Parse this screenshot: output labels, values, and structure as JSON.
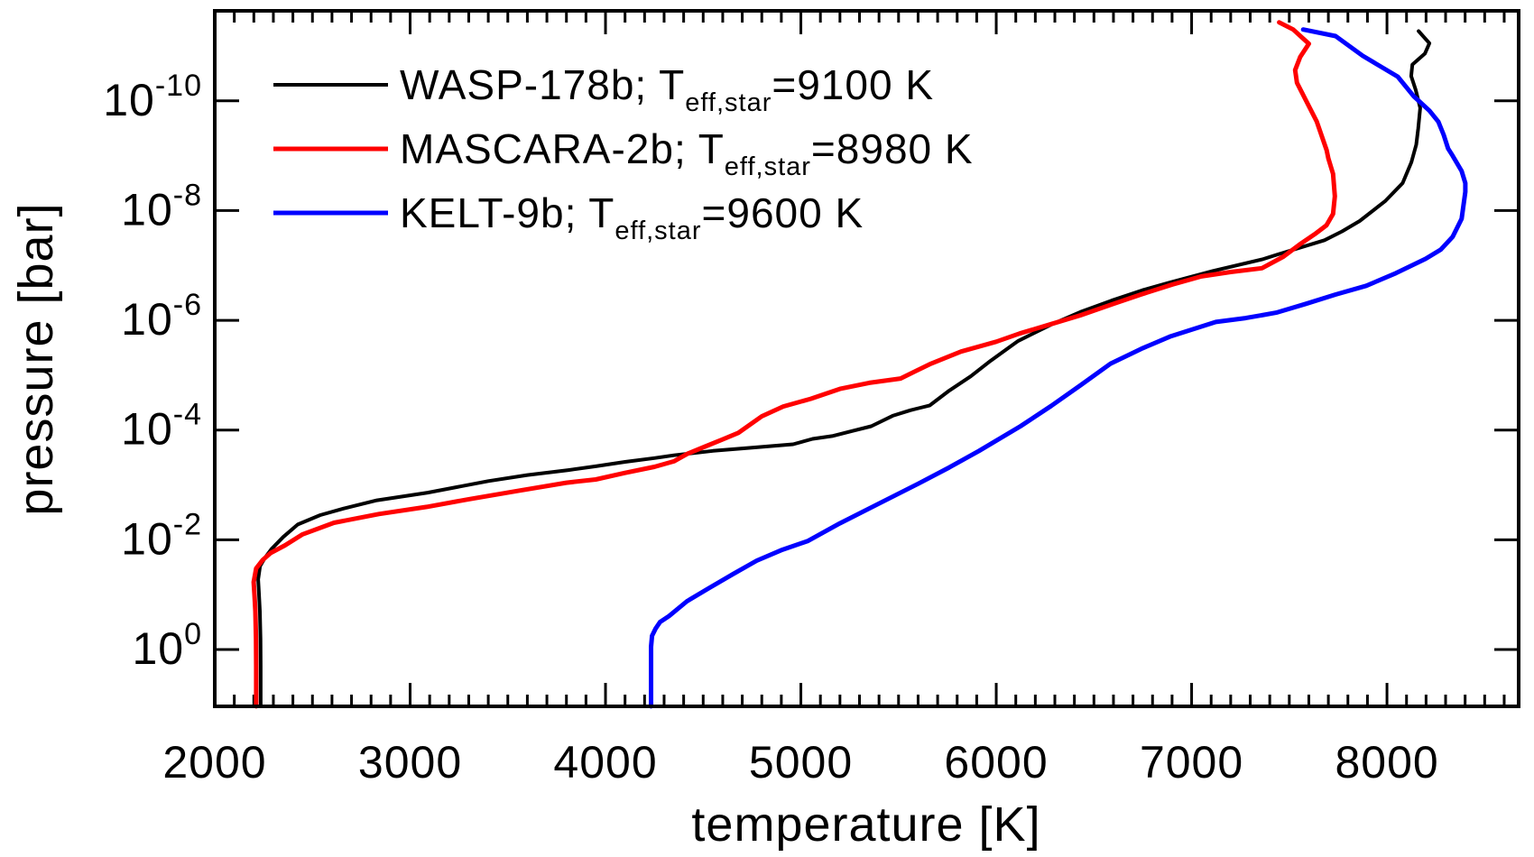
{
  "figure": {
    "background": "#ffffff",
    "axis_color": "#000000"
  },
  "axes": {
    "x": {
      "label": "temperature [K]",
      "min": 2000,
      "max": 8674,
      "major_ticks": [
        2000,
        3000,
        4000,
        5000,
        6000,
        7000,
        8000
      ],
      "major_tick_labels": [
        "2000",
        "3000",
        "4000",
        "5000",
        "6000",
        "7000",
        "8000"
      ],
      "minor_tick_step": 100,
      "scale": "linear"
    },
    "y": {
      "label": "pressure [bar]",
      "scale": "log",
      "inverted": true,
      "top_log10": -11.64,
      "bottom_log10": 1.035,
      "major_tick_log10": [
        -10,
        -8,
        -6,
        -4,
        -2,
        0
      ],
      "major_tick_labels": [
        {
          "base": "10",
          "exp": "-10"
        },
        {
          "base": "10",
          "exp": "-8"
        },
        {
          "base": "10",
          "exp": "-6"
        },
        {
          "base": "10",
          "exp": "-4"
        },
        {
          "base": "10",
          "exp": "-2"
        },
        {
          "base": "10",
          "exp": "0"
        }
      ]
    }
  },
  "legend": {
    "position": "upper-left-inside",
    "entries": [
      {
        "label_main": "WASP-178b; T",
        "label_sub": "eff,star",
        "label_suffix": "=9100 K",
        "color": "#000000"
      },
      {
        "label_main": "MASCARA-2b; T",
        "label_sub": "eff,star",
        "label_suffix": "=8980 K",
        "color": "#ff0000"
      },
      {
        "label_main": "KELT-9b; T",
        "label_sub": "eff,star",
        "label_suffix": "=9600 K",
        "color": "#0000ff"
      }
    ]
  },
  "chart_data": {
    "type": "line",
    "title": "",
    "xlabel": "temperature [K]",
    "ylabel": "pressure [bar]",
    "xlim": [
      2000,
      8674
    ],
    "ylog_range_bar": [
      11.0,
      2.3e-12
    ],
    "grid": false,
    "series": [
      {
        "name": "WASP-178b",
        "teff_star_K": 9100,
        "color": "#000000",
        "width": 4,
        "points_T_logP": [
          [
            2235,
            1.035
          ],
          [
            2235,
            0.3
          ],
          [
            2234,
            -0.2
          ],
          [
            2231,
            -0.7
          ],
          [
            2226,
            -1.05
          ],
          [
            2222,
            -1.28
          ],
          [
            2232,
            -1.52
          ],
          [
            2258,
            -1.68
          ],
          [
            2290,
            -1.83
          ],
          [
            2350,
            -2.05
          ],
          [
            2425,
            -2.28
          ],
          [
            2540,
            -2.45
          ],
          [
            2660,
            -2.57
          ],
          [
            2830,
            -2.72
          ],
          [
            3090,
            -2.86
          ],
          [
            3400,
            -3.07
          ],
          [
            3600,
            -3.18
          ],
          [
            3810,
            -3.27
          ],
          [
            3950,
            -3.34
          ],
          [
            4100,
            -3.42
          ],
          [
            4250,
            -3.49
          ],
          [
            4350,
            -3.54
          ],
          [
            4550,
            -3.62
          ],
          [
            4750,
            -3.68
          ],
          [
            4960,
            -3.74
          ],
          [
            5060,
            -3.84
          ],
          [
            5160,
            -3.89
          ],
          [
            5260,
            -3.98
          ],
          [
            5360,
            -4.07
          ],
          [
            5470,
            -4.26
          ],
          [
            5560,
            -4.36
          ],
          [
            5660,
            -4.45
          ],
          [
            5760,
            -4.72
          ],
          [
            5870,
            -4.98
          ],
          [
            5970,
            -5.26
          ],
          [
            6110,
            -5.62
          ],
          [
            6280,
            -5.92
          ],
          [
            6430,
            -6.15
          ],
          [
            6590,
            -6.36
          ],
          [
            6750,
            -6.55
          ],
          [
            6890,
            -6.69
          ],
          [
            7110,
            -6.9
          ],
          [
            7360,
            -7.11
          ],
          [
            7440,
            -7.2
          ],
          [
            7680,
            -7.46
          ],
          [
            7770,
            -7.62
          ],
          [
            7860,
            -7.81
          ],
          [
            7990,
            -8.17
          ],
          [
            8080,
            -8.5
          ],
          [
            8125,
            -8.88
          ],
          [
            8150,
            -9.2
          ],
          [
            8160,
            -9.5
          ],
          [
            8170,
            -9.87
          ],
          [
            8147,
            -10.2
          ],
          [
            8124,
            -10.45
          ],
          [
            8130,
            -10.66
          ],
          [
            8194,
            -10.86
          ],
          [
            8217,
            -11.05
          ],
          [
            8162,
            -11.27
          ]
        ]
      },
      {
        "name": "MASCARA-2b",
        "teff_star_K": 8980,
        "color": "#ff0000",
        "width": 5,
        "points_T_logP": [
          [
            2212,
            1.035
          ],
          [
            2212,
            0.3
          ],
          [
            2211,
            -0.2
          ],
          [
            2208,
            -0.7
          ],
          [
            2203,
            -1.0
          ],
          [
            2199,
            -1.23
          ],
          [
            2212,
            -1.48
          ],
          [
            2245,
            -1.63
          ],
          [
            2286,
            -1.76
          ],
          [
            2360,
            -1.9
          ],
          [
            2450,
            -2.1
          ],
          [
            2610,
            -2.31
          ],
          [
            2840,
            -2.47
          ],
          [
            3085,
            -2.6
          ],
          [
            3300,
            -2.74
          ],
          [
            3550,
            -2.89
          ],
          [
            3800,
            -3.04
          ],
          [
            3950,
            -3.1
          ],
          [
            4100,
            -3.22
          ],
          [
            4250,
            -3.33
          ],
          [
            4350,
            -3.43
          ],
          [
            4420,
            -3.57
          ],
          [
            4510,
            -3.7
          ],
          [
            4600,
            -3.83
          ],
          [
            4680,
            -3.95
          ],
          [
            4800,
            -4.25
          ],
          [
            4910,
            -4.43
          ],
          [
            5050,
            -4.57
          ],
          [
            5200,
            -4.75
          ],
          [
            5350,
            -4.86
          ],
          [
            5510,
            -4.94
          ],
          [
            5660,
            -5.2
          ],
          [
            5820,
            -5.43
          ],
          [
            6000,
            -5.61
          ],
          [
            6120,
            -5.76
          ],
          [
            6280,
            -5.93
          ],
          [
            6430,
            -6.09
          ],
          [
            6600,
            -6.3
          ],
          [
            6740,
            -6.47
          ],
          [
            6900,
            -6.65
          ],
          [
            7050,
            -6.8
          ],
          [
            7200,
            -6.88
          ],
          [
            7360,
            -6.95
          ],
          [
            7470,
            -7.16
          ],
          [
            7560,
            -7.4
          ],
          [
            7630,
            -7.57
          ],
          [
            7690,
            -7.73
          ],
          [
            7724,
            -7.94
          ],
          [
            7733,
            -8.26
          ],
          [
            7724,
            -8.67
          ],
          [
            7700,
            -8.95
          ],
          [
            7691,
            -9.1
          ],
          [
            7641,
            -9.62
          ],
          [
            7539,
            -10.33
          ],
          [
            7530,
            -10.56
          ],
          [
            7556,
            -10.8
          ],
          [
            7600,
            -11.04
          ],
          [
            7520,
            -11.3
          ],
          [
            7448,
            -11.43
          ]
        ]
      },
      {
        "name": "KELT-9b",
        "teff_star_K": 9600,
        "color": "#0000ff",
        "width": 5,
        "points_T_logP": [
          [
            4233,
            1.035
          ],
          [
            4233,
            0.3
          ],
          [
            4233,
            -0.05
          ],
          [
            4238,
            -0.25
          ],
          [
            4256,
            -0.38
          ],
          [
            4279,
            -0.5
          ],
          [
            4325,
            -0.61
          ],
          [
            4417,
            -0.88
          ],
          [
            4530,
            -1.12
          ],
          [
            4650,
            -1.37
          ],
          [
            4774,
            -1.62
          ],
          [
            4899,
            -1.81
          ],
          [
            5037,
            -1.98
          ],
          [
            5200,
            -2.3
          ],
          [
            5400,
            -2.66
          ],
          [
            5600,
            -3.02
          ],
          [
            5760,
            -3.32
          ],
          [
            5912,
            -3.62
          ],
          [
            6124,
            -4.07
          ],
          [
            6281,
            -4.44
          ],
          [
            6433,
            -4.82
          ],
          [
            6585,
            -5.21
          ],
          [
            6742,
            -5.48
          ],
          [
            6894,
            -5.71
          ],
          [
            7124,
            -5.97
          ],
          [
            7276,
            -6.04
          ],
          [
            7433,
            -6.14
          ],
          [
            7585,
            -6.3
          ],
          [
            7737,
            -6.47
          ],
          [
            7894,
            -6.63
          ],
          [
            8046,
            -6.86
          ],
          [
            8198,
            -7.12
          ],
          [
            8276,
            -7.29
          ],
          [
            8336,
            -7.52
          ],
          [
            8382,
            -7.85
          ],
          [
            8401,
            -8.34
          ],
          [
            8401,
            -8.5
          ],
          [
            8382,
            -8.72
          ],
          [
            8336,
            -9.0
          ],
          [
            8313,
            -9.13
          ],
          [
            8290,
            -9.38
          ],
          [
            8263,
            -9.62
          ],
          [
            8217,
            -9.82
          ],
          [
            8138,
            -10.08
          ],
          [
            8055,
            -10.44
          ],
          [
            7876,
            -10.82
          ],
          [
            7737,
            -11.18
          ],
          [
            7571,
            -11.3
          ]
        ]
      }
    ]
  }
}
